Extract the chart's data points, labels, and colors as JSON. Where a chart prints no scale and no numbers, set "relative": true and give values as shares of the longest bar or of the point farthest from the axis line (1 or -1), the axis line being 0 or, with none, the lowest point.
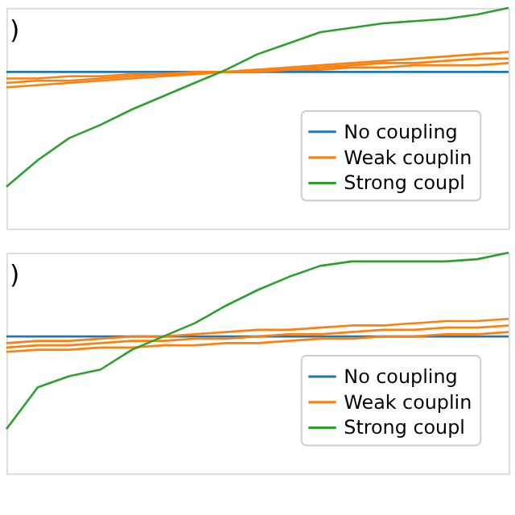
{
  "chart_data": [
    {
      "type": "line",
      "relative": true,
      "legend": "bottom right",
      "annotations": [
        ")"
      ],
      "categories": [
        null,
        null,
        null,
        null,
        null,
        null,
        null,
        null,
        null,
        null,
        null,
        null,
        null,
        null,
        null,
        null,
        null
      ],
      "series": [
        {
          "name": "No coupling",
          "color": "#1f77b4",
          "values": [
            0.71,
            0.71,
            0.71,
            0.71,
            0.71,
            0.71,
            0.71,
            0.71,
            0.71,
            0.71,
            0.71,
            0.71,
            0.71,
            0.71,
            0.71,
            0.71,
            0.71
          ]
        },
        {
          "name": "Weak couplin",
          "color": "#ff7f0e",
          "values": [
            0.68,
            0.68,
            0.69,
            0.69,
            0.7,
            0.7,
            0.71,
            0.71,
            0.71,
            0.72,
            0.72,
            0.73,
            0.73,
            0.74,
            0.74,
            0.74,
            0.75
          ]
        },
        {
          "color": "#ff7f0e",
          "values": [
            0.66,
            0.67,
            0.67,
            0.68,
            0.69,
            0.7,
            0.7,
            0.71,
            0.72,
            0.72,
            0.73,
            0.74,
            0.75,
            0.75,
            0.76,
            0.77,
            0.77
          ]
        },
        {
          "color": "#ff7f0e",
          "values": [
            0.64,
            0.65,
            0.66,
            0.67,
            0.68,
            0.69,
            0.7,
            0.71,
            0.72,
            0.73,
            0.74,
            0.75,
            0.76,
            0.77,
            0.78,
            0.79,
            0.8
          ]
        },
        {
          "name": "Strong coupl",
          "color": "#2ca02c",
          "values": [
            0.19,
            0.31,
            0.41,
            0.47,
            0.54,
            0.6,
            0.66,
            0.72,
            0.79,
            0.84,
            0.89,
            0.91,
            0.93,
            0.94,
            0.95,
            0.97,
            1
          ]
        }
      ]
    },
    {
      "type": "line",
      "relative": true,
      "legend": "bottom right",
      "annotations": [
        ")"
      ],
      "categories": [
        null,
        null,
        null,
        null,
        null,
        null,
        null,
        null,
        null,
        null,
        null,
        null,
        null,
        null,
        null,
        null,
        null
      ],
      "series": [
        {
          "name": "No coupling",
          "color": "#1f77b4",
          "values": [
            0.62,
            0.62,
            0.62,
            0.62,
            0.62,
            0.62,
            0.62,
            0.62,
            0.62,
            0.62,
            0.62,
            0.62,
            0.62,
            0.62,
            0.62,
            0.62,
            0.62
          ]
        },
        {
          "name": "Weak couplin",
          "color": "#ff7f0e",
          "values": [
            0.59,
            0.6,
            0.6,
            0.61,
            0.62,
            0.62,
            0.63,
            0.64,
            0.65,
            0.65,
            0.66,
            0.67,
            0.67,
            0.68,
            0.69,
            0.69,
            0.7
          ]
        },
        {
          "color": "#ff7f0e",
          "values": [
            0.57,
            0.58,
            0.58,
            0.59,
            0.6,
            0.6,
            0.61,
            0.61,
            0.62,
            0.63,
            0.63,
            0.64,
            0.65,
            0.65,
            0.66,
            0.66,
            0.67
          ]
        },
        {
          "color": "#ff7f0e",
          "values": [
            0.55,
            0.56,
            0.56,
            0.57,
            0.57,
            0.58,
            0.58,
            0.59,
            0.59,
            0.6,
            0.61,
            0.61,
            0.62,
            0.62,
            0.63,
            0.63,
            0.64
          ]
        },
        {
          "name": "Strong coupl",
          "color": "#2ca02c",
          "values": [
            0.2,
            0.39,
            0.44,
            0.47,
            0.56,
            0.62,
            0.68,
            0.76,
            0.83,
            0.89,
            0.94,
            0.96,
            0.96,
            0.96,
            0.96,
            0.97,
            1
          ]
        }
      ]
    }
  ]
}
